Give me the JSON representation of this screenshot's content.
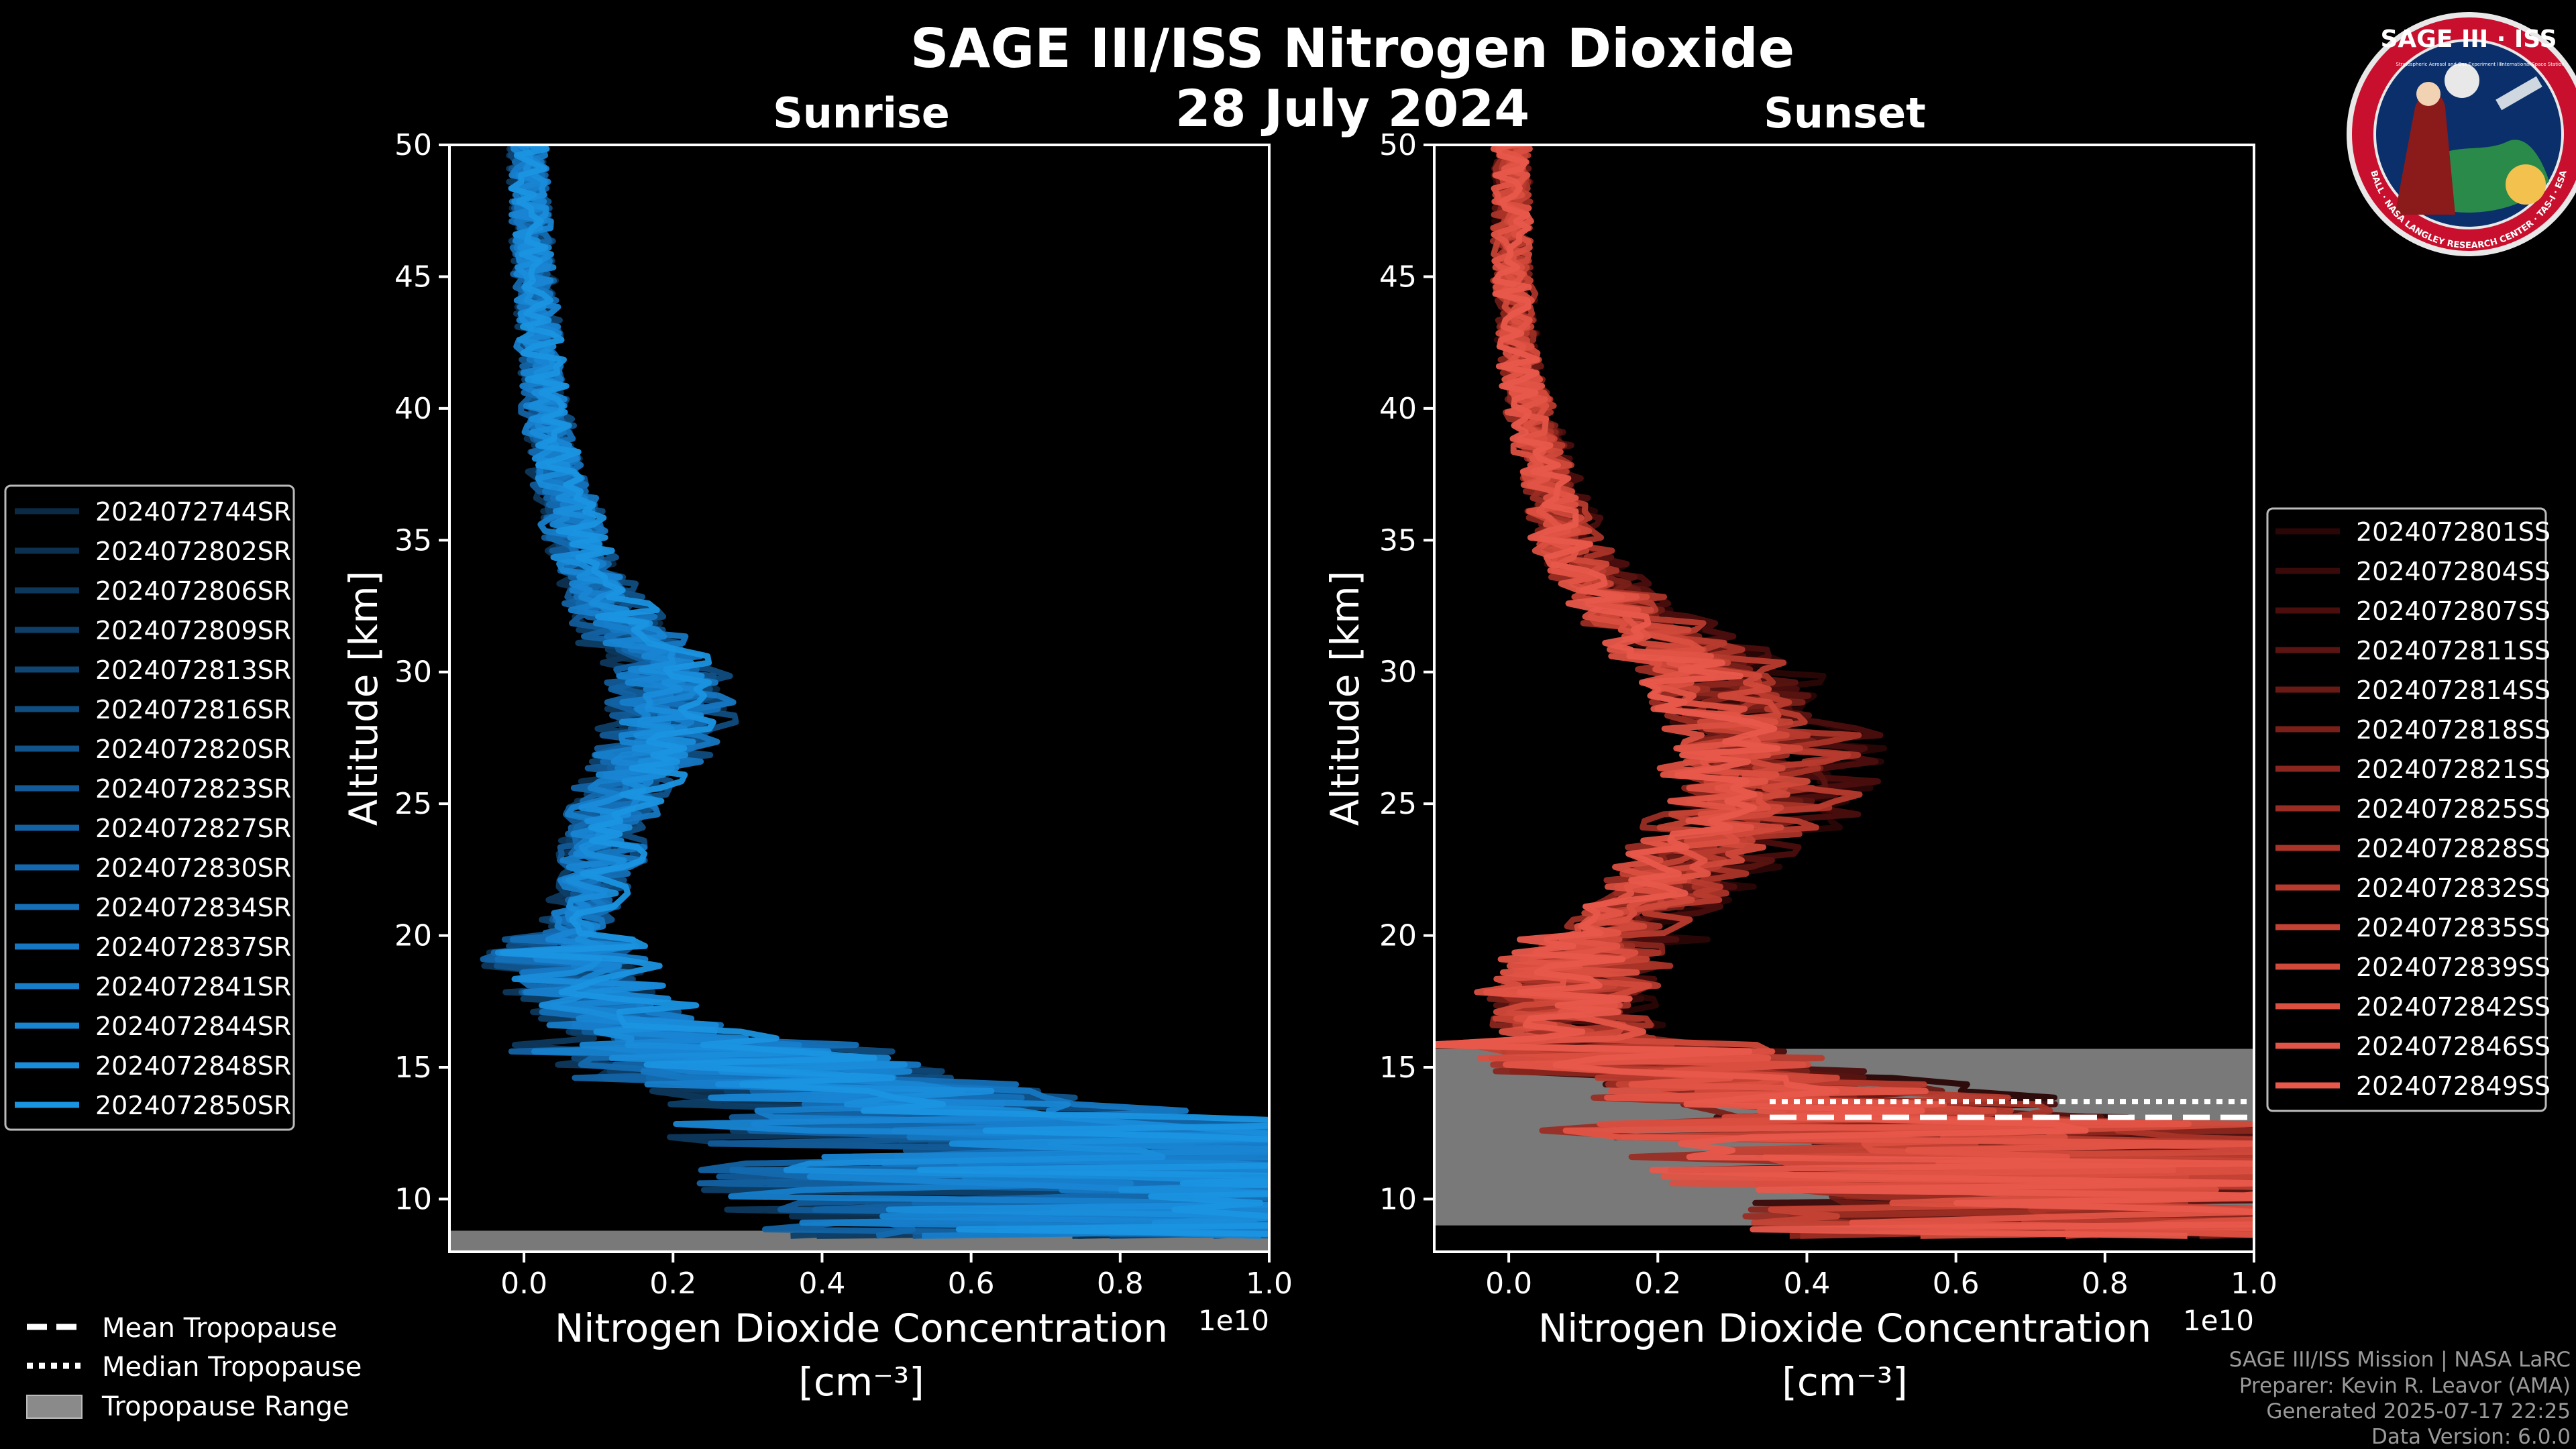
{
  "title": "SAGE III/ISS Nitrogen Dioxide",
  "date": "28 July 2024",
  "logo": {
    "top_text": "SAGE III · ISS",
    "ring_text": "BALL · NASA LANGLEY RESEARCH CENTER · TAS-I · ESA",
    "tagline_left": "Stratospheric Aerosol and Gas Experiment III",
    "tagline_right": "International Space Station"
  },
  "colors": {
    "background": "#000000",
    "sunrise": "#1a9ae0",
    "sunset": "#e8574a",
    "tropopause_band": "#808080"
  },
  "chart_data": [
    {
      "type": "line",
      "panel": "sunrise",
      "title": "Sunrise",
      "xlabel": "Nitrogen Dioxide Concentration",
      "xunit": "[cm⁻³]",
      "ylabel": "Altitude [km]",
      "x_scale_label": "1e10",
      "xlim": [
        -0.1,
        1.0
      ],
      "ylim": [
        8,
        50
      ],
      "xticks": [
        0.0,
        0.2,
        0.4,
        0.6,
        0.8,
        1.0
      ],
      "xtick_labels": [
        "0.0",
        "0.2",
        "0.4",
        "0.6",
        "0.8",
        "1.0"
      ],
      "yticks": [
        10,
        15,
        20,
        25,
        30,
        35,
        40,
        45,
        50
      ],
      "ytick_labels": [
        "10",
        "15",
        "20",
        "25",
        "30",
        "35",
        "40",
        "45",
        "50"
      ],
      "grid": false,
      "legend_position": "left",
      "tropopause": {
        "mean": null,
        "median": null,
        "range": [
          8.0,
          8.8
        ]
      },
      "profile_shape": {
        "altitude": [
          9,
          10,
          11,
          12,
          13,
          14,
          15,
          16,
          17,
          18,
          19,
          20,
          21,
          22,
          23,
          24,
          25,
          26,
          27,
          28,
          29,
          30,
          31,
          32,
          33,
          34,
          35,
          36,
          37,
          38,
          39,
          40,
          41,
          42,
          43,
          44,
          45,
          46,
          47,
          48,
          49,
          50
        ],
        "no2": [
          0.85,
          0.8,
          0.75,
          0.85,
          0.6,
          0.45,
          0.3,
          0.2,
          0.12,
          0.08,
          0.06,
          0.06,
          0.08,
          0.09,
          0.1,
          0.1,
          0.12,
          0.14,
          0.17,
          0.19,
          0.2,
          0.18,
          0.15,
          0.12,
          0.1,
          0.08,
          0.07,
          0.06,
          0.05,
          0.04,
          0.035,
          0.03,
          0.025,
          0.02,
          0.02,
          0.018,
          0.015,
          0.012,
          0.01,
          0.008,
          0.006,
          0.005
        ]
      },
      "series": [
        {
          "name": "2024072744SR",
          "color": "#0b2a45"
        },
        {
          "name": "2024072802SR",
          "color": "#0c3150"
        },
        {
          "name": "2024072806SR",
          "color": "#0d385c"
        },
        {
          "name": "2024072809SR",
          "color": "#0e3f68"
        },
        {
          "name": "2024072813SR",
          "color": "#0f4674"
        },
        {
          "name": "2024072816SR",
          "color": "#104d80"
        },
        {
          "name": "2024072820SR",
          "color": "#11548c"
        },
        {
          "name": "2024072823SR",
          "color": "#125b98"
        },
        {
          "name": "2024072827SR",
          "color": "#1362a3"
        },
        {
          "name": "2024072830SR",
          "color": "#1469ae"
        },
        {
          "name": "2024072834SR",
          "color": "#1570b8"
        },
        {
          "name": "2024072837SR",
          "color": "#1677c2"
        },
        {
          "name": "2024072841SR",
          "color": "#177ecb"
        },
        {
          "name": "2024072844SR",
          "color": "#1885d3"
        },
        {
          "name": "2024072848SR",
          "color": "#198cda"
        },
        {
          "name": "2024072850SR",
          "color": "#1a93e0"
        }
      ]
    },
    {
      "type": "line",
      "panel": "sunset",
      "title": "Sunset",
      "xlabel": "Nitrogen Dioxide Concentration",
      "xunit": "[cm⁻³]",
      "ylabel": "Altitude [km]",
      "x_scale_label": "1e10",
      "xlim": [
        -0.1,
        1.0
      ],
      "ylim": [
        8,
        50
      ],
      "xticks": [
        0.0,
        0.2,
        0.4,
        0.6,
        0.8,
        1.0
      ],
      "xtick_labels": [
        "0.0",
        "0.2",
        "0.4",
        "0.6",
        "0.8",
        "1.0"
      ],
      "yticks": [
        10,
        15,
        20,
        25,
        30,
        35,
        40,
        45,
        50
      ],
      "ytick_labels": [
        "10",
        "15",
        "20",
        "25",
        "30",
        "35",
        "40",
        "45",
        "50"
      ],
      "grid": false,
      "legend_position": "right",
      "tropopause": {
        "mean": 13.1,
        "median": 13.7,
        "range": [
          9.0,
          15.7
        ]
      },
      "profile_shape": {
        "altitude": [
          9,
          10,
          11,
          12,
          13,
          14,
          15,
          16,
          17,
          18,
          19,
          20,
          21,
          22,
          23,
          24,
          25,
          26,
          27,
          28,
          29,
          30,
          31,
          32,
          33,
          34,
          35,
          36,
          37,
          38,
          39,
          40,
          41,
          42,
          43,
          44,
          45,
          46,
          47,
          48,
          49,
          50
        ],
        "no2": [
          0.9,
          0.85,
          0.8,
          0.75,
          0.55,
          0.4,
          0.2,
          0.1,
          0.08,
          0.08,
          0.1,
          0.14,
          0.18,
          0.23,
          0.27,
          0.3,
          0.33,
          0.34,
          0.35,
          0.34,
          0.32,
          0.28,
          0.23,
          0.18,
          0.14,
          0.1,
          0.08,
          0.07,
          0.06,
          0.05,
          0.04,
          0.03,
          0.02,
          0.015,
          0.01,
          0.01,
          0.005,
          0.005,
          0.005,
          0.005,
          0.005,
          0.005
        ]
      },
      "series": [
        {
          "name": "2024072801SS",
          "color": "#2a0606"
        },
        {
          "name": "2024072804SS",
          "color": "#3a0a0a"
        },
        {
          "name": "2024072807SS",
          "color": "#4a0e0d"
        },
        {
          "name": "2024072811SS",
          "color": "#5a1411"
        },
        {
          "name": "2024072814SS",
          "color": "#6a1a15"
        },
        {
          "name": "2024072818SS",
          "color": "#7a2019"
        },
        {
          "name": "2024072821SS",
          "color": "#8a261e"
        },
        {
          "name": "2024072825SS",
          "color": "#9a2d23"
        },
        {
          "name": "2024072828SS",
          "color": "#aa3428"
        },
        {
          "name": "2024072832SS",
          "color": "#b83b2e"
        },
        {
          "name": "2024072835SS",
          "color": "#c44234"
        },
        {
          "name": "2024072839SS",
          "color": "#d0493a"
        },
        {
          "name": "2024072842SS",
          "color": "#da4f40"
        },
        {
          "name": "2024072846SS",
          "color": "#e25446"
        },
        {
          "name": "2024072849SS",
          "color": "#e8594b"
        }
      ]
    }
  ],
  "tropopause_legend": [
    {
      "label": "Mean Tropopause",
      "style": "dashed"
    },
    {
      "label": "Median Tropopause",
      "style": "dotted"
    },
    {
      "label": "Tropopause Range",
      "style": "band"
    }
  ],
  "footer": [
    "SAGE III/ISS Mission | NASA LaRC",
    "Preparer: Kevin R. Leavor (AMA)",
    "Generated 2025-07-17 22:25",
    "Data Version: 6.0.0"
  ]
}
